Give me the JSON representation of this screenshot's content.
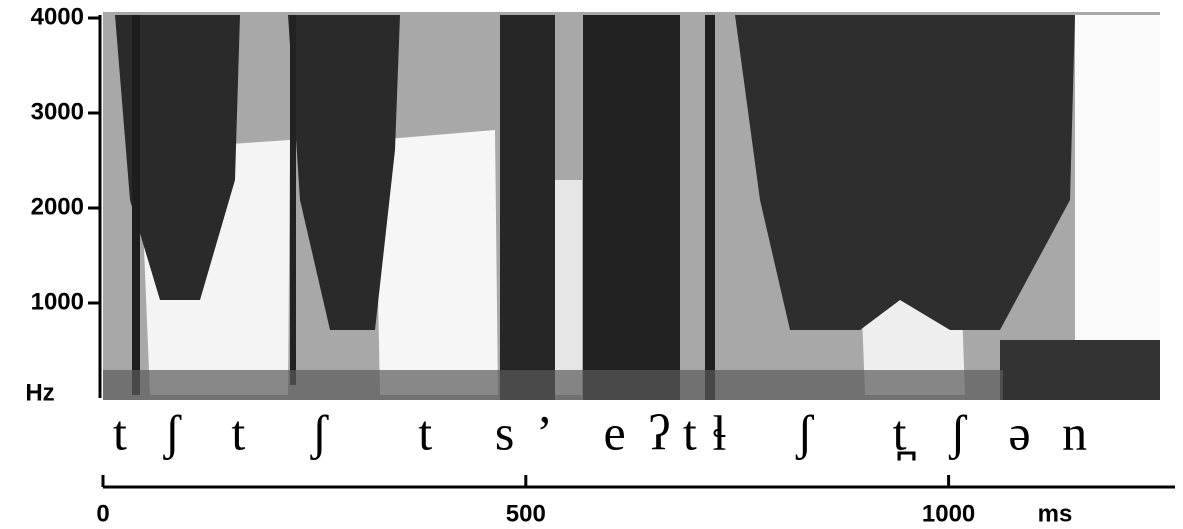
{
  "chart_data": {
    "type": "spectrogram",
    "ylabel": "Hz",
    "xlabel": "ms",
    "ylim": [
      0,
      4000
    ],
    "yticks": [
      1000,
      2000,
      3000,
      4000
    ],
    "xlim": [
      0,
      1250
    ],
    "xticks": [
      0,
      500,
      1000
    ],
    "segments": [
      "t",
      "ʃ",
      "t",
      "ʃ",
      "t",
      "s",
      "’",
      "e",
      "ʔ",
      "t",
      "ɬ",
      "ʃ",
      "t̪",
      "ʃ",
      "ə",
      "n"
    ],
    "segment_times": [
      20,
      82,
      160,
      256,
      381,
      475,
      522,
      605,
      658,
      694,
      729,
      830,
      942,
      1011,
      1084,
      1149
    ]
  }
}
